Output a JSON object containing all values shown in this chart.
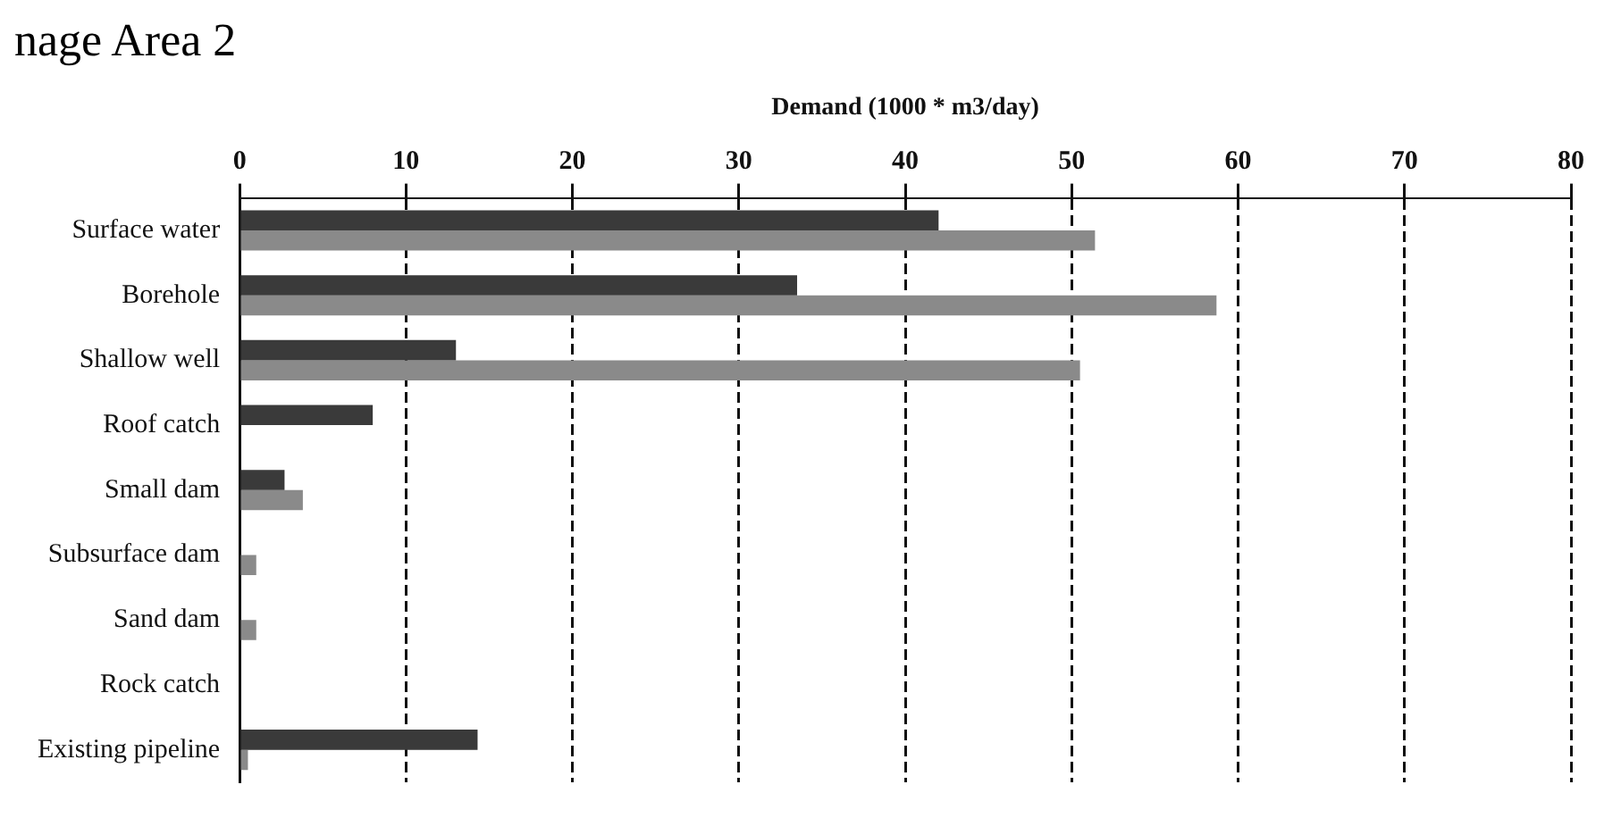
{
  "chart_data": {
    "type": "bar",
    "orientation": "horizontal",
    "title": "nage Area 2",
    "xlabel": "Demand (1000 * m3/day)",
    "categories": [
      "Surface water",
      "Borehole",
      "Shallow well",
      "Roof catch",
      "Small dam",
      "Subsurface dam",
      "Sand dam",
      "Rock catch",
      "Existing pipeline"
    ],
    "series": [
      {
        "color": "#3a3a3a",
        "values": [
          42,
          33.5,
          13,
          8,
          2.7,
          0,
          0,
          0,
          14.3
        ]
      },
      {
        "color": "#8a8a8a",
        "values": [
          51.4,
          58.7,
          50.5,
          0,
          3.8,
          1,
          1,
          0,
          0.5
        ]
      }
    ],
    "xlim": [
      0,
      80
    ],
    "xticks": [
      0,
      10,
      20,
      30,
      40,
      50,
      60,
      70,
      80
    ],
    "grid": "x",
    "legend": false
  }
}
